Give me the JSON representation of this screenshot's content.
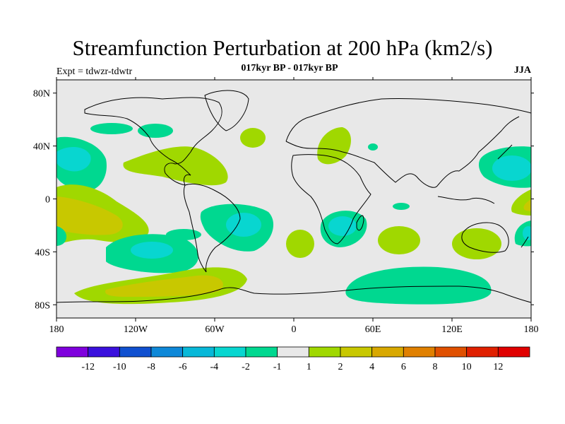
{
  "figure": {
    "title": "Streamfunction Perturbation at 200 hPa (km2/s)",
    "subtitle": "017kyr BP - 017kyr BP",
    "left_label": "Expt = tdwzr-tdwtr",
    "right_label": "JJA"
  },
  "map": {
    "projection": "cylindrical-equidistant",
    "lon_range": [
      -180,
      180
    ],
    "lat_range": [
      -90,
      90
    ],
    "background_color": "#e8e8e8",
    "lon_ticks": [
      {
        "value": -180,
        "label": "180"
      },
      {
        "value": -120,
        "label": "120W"
      },
      {
        "value": -60,
        "label": "60W"
      },
      {
        "value": 0,
        "label": "0"
      },
      {
        "value": 60,
        "label": "60E"
      },
      {
        "value": 120,
        "label": "120E"
      },
      {
        "value": 180,
        "label": "180"
      }
    ],
    "lat_ticks": [
      {
        "value": 80,
        "label": "80N"
      },
      {
        "value": 40,
        "label": "40N"
      },
      {
        "value": 0,
        "label": "0"
      },
      {
        "value": -40,
        "label": "40S"
      },
      {
        "value": -80,
        "label": "80S"
      }
    ]
  },
  "colorbar": {
    "colors": [
      "#7f00dd",
      "#3a10dd",
      "#1050d0",
      "#0e88d8",
      "#08b8d8",
      "#08d6d0",
      "#00d890",
      "#e8e8e8",
      "#a0d800",
      "#c8c800",
      "#d8a800",
      "#e08000",
      "#e05000",
      "#e02000",
      "#e00000"
    ],
    "labels": [
      "-12",
      "-10",
      "-8",
      "-6",
      "-4",
      "-2",
      "-1",
      "1",
      "2",
      "4",
      "6",
      "8",
      "10",
      "12"
    ]
  },
  "chart_data": {
    "type": "heatmap",
    "title": "Streamfunction Perturbation at 200 hPa (km2/s)",
    "levels": [
      -12,
      -10,
      -8,
      -6,
      -4,
      -2,
      -1,
      1,
      2,
      4,
      6,
      8,
      10,
      12
    ],
    "units": "km2/s",
    "anomalies": [
      {
        "lon": -160,
        "lat": 35,
        "level": -4
      },
      {
        "lon": -145,
        "lat": -20,
        "level": 4
      },
      {
        "lon": -105,
        "lat": -38,
        "level": -4
      },
      {
        "lon": -105,
        "lat": 62,
        "level": -1
      },
      {
        "lon": -80,
        "lat": 28,
        "level": 2
      },
      {
        "lon": -40,
        "lat": -18,
        "level": -4
      },
      {
        "lon": -65,
        "lat": -60,
        "level": 4
      },
      {
        "lon": 25,
        "lat": 45,
        "level": 2
      },
      {
        "lon": 40,
        "lat": -25,
        "level": -4
      },
      {
        "lon": 75,
        "lat": -25,
        "level": 2
      },
      {
        "lon": 95,
        "lat": -63,
        "level": -1
      },
      {
        "lon": 165,
        "lat": 25,
        "level": -4
      },
      {
        "lon": 175,
        "lat": -30,
        "level": -4
      },
      {
        "lon": 180,
        "lat": -5,
        "level": 2
      }
    ]
  }
}
